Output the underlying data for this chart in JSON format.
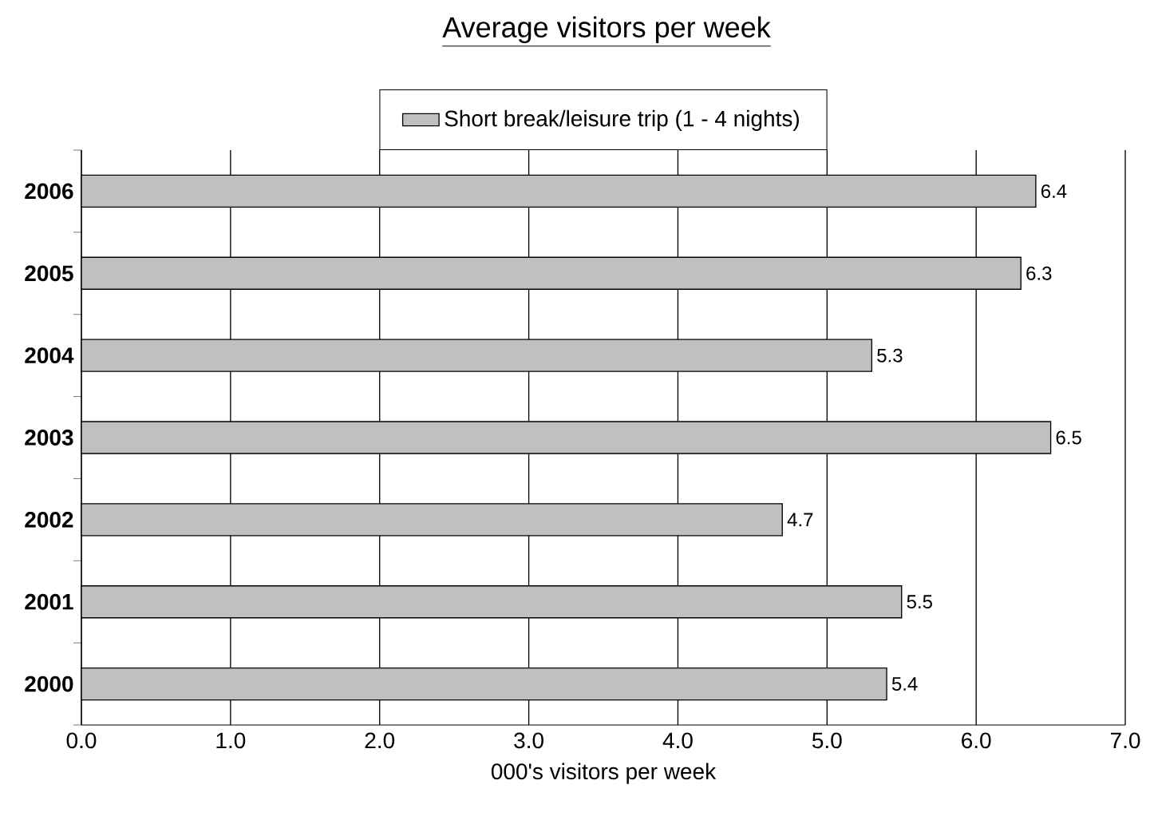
{
  "chart_data": {
    "type": "bar",
    "orientation": "horizontal",
    "title": "Average visitors per week",
    "xlabel": "000's visitors per week",
    "categories": [
      "2006",
      "2005",
      "2004",
      "2003",
      "2002",
      "2001",
      "2000"
    ],
    "series": [
      {
        "name": "Short break/leisure trip  (1 - 4 nights)",
        "color": "#c0c0c0",
        "values": [
          6.4,
          6.3,
          5.3,
          6.5,
          4.7,
          5.5,
          5.4
        ]
      }
    ],
    "xlim": [
      0,
      7
    ],
    "xticks": [
      {
        "value": 0,
        "label": "0.0"
      },
      {
        "value": 1,
        "label": "1.0"
      },
      {
        "value": 2,
        "label": "2.0"
      },
      {
        "value": 3,
        "label": "3.0"
      },
      {
        "value": 4,
        "label": "4.0"
      },
      {
        "value": 5,
        "label": "5.0"
      },
      {
        "value": 6,
        "label": "6.0"
      },
      {
        "value": 7,
        "label": "7.0"
      }
    ],
    "grid": "x",
    "legend": "top",
    "data_labels": true
  }
}
